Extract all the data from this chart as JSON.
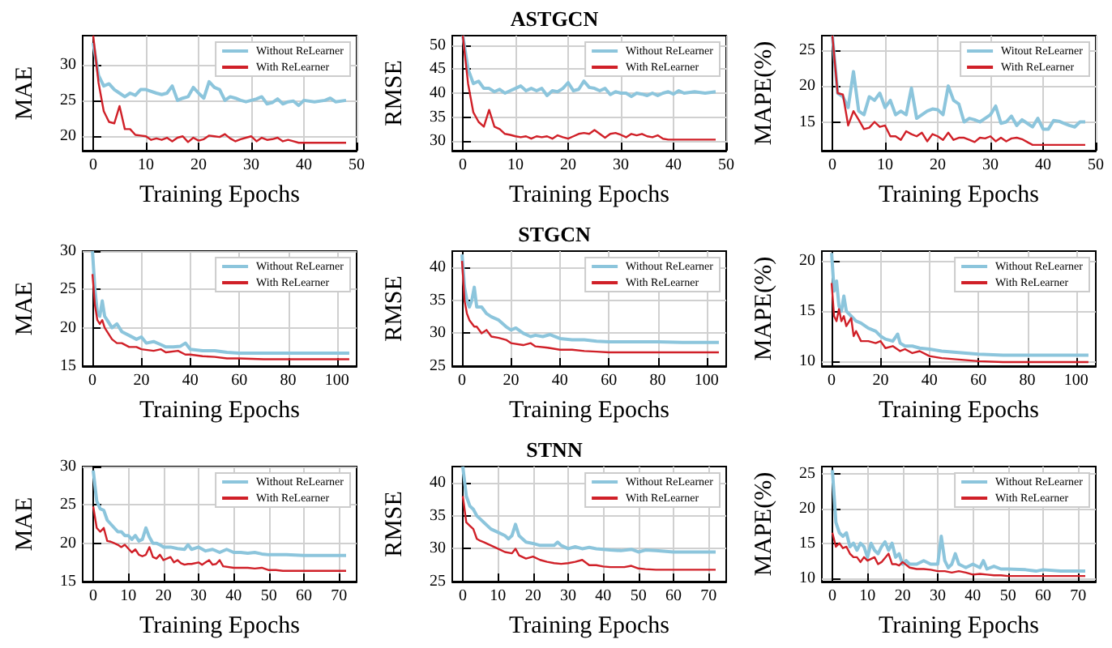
{
  "chart_data": [
    {
      "type": "line",
      "xlabel": "Training Epochs",
      "ylabel": "MAE",
      "xlim": [
        -2,
        50
      ],
      "xticks": [
        0,
        10,
        20,
        30,
        40,
        50
      ],
      "ylim": [
        18,
        34
      ],
      "yticks": [
        20,
        25,
        30
      ],
      "grid": true,
      "legend": "top right",
      "series": [
        {
          "name": "Without ReLearner",
          "color": "#8cc5dc",
          "x": [
            0,
            1,
            2,
            3,
            4,
            5,
            6,
            7,
            8,
            9,
            10,
            12,
            13,
            14,
            15,
            16,
            17,
            18,
            19,
            20,
            21,
            22,
            23,
            24,
            25,
            26,
            27,
            28,
            29,
            30,
            31,
            32,
            33,
            34,
            35,
            36,
            37,
            38,
            39,
            40,
            42,
            44,
            45,
            46,
            48
          ],
          "values": [
            33,
            28.5,
            27,
            27.3,
            26.5,
            26,
            25.5,
            26,
            25.7,
            26.5,
            26.5,
            26,
            25.8,
            26,
            27,
            25,
            25.3,
            25.5,
            26.8,
            26,
            25.3,
            27.6,
            26.8,
            26.5,
            25,
            25.5,
            25.3,
            25,
            24.8,
            25,
            25.2,
            25.5,
            24.5,
            24.7,
            25.2,
            24.5,
            24.8,
            24.9,
            24.3,
            25,
            24.8,
            25,
            25.3,
            24.8,
            25
          ]
        },
        {
          "name": "With ReLearner",
          "color": "#d02028",
          "x": [
            0,
            1,
            2,
            3,
            4,
            5,
            6,
            7,
            8,
            9,
            10,
            11,
            12,
            13,
            14,
            15,
            16,
            17,
            18,
            19,
            20,
            21,
            22,
            23,
            24,
            25,
            26,
            27,
            28,
            29,
            30,
            31,
            32,
            33,
            34,
            35,
            36,
            37,
            38,
            39,
            40,
            48
          ],
          "values": [
            34,
            27.5,
            23.5,
            22,
            21.8,
            24.2,
            21,
            21,
            20.2,
            20.1,
            20,
            19.5,
            19.7,
            19.5,
            19.8,
            19.3,
            19.8,
            20,
            19.2,
            19.8,
            19.4,
            19.6,
            20.1,
            20,
            19.9,
            20.3,
            19.7,
            19.3,
            19.6,
            19.8,
            20,
            19.3,
            19.8,
            19.5,
            19.6,
            19.8,
            19.3,
            19.5,
            19.3,
            19.1,
            19.1,
            19.1
          ]
        }
      ]
    },
    {
      "type": "line",
      "title": "ASTGCN",
      "xlabel": "Training Epochs",
      "ylabel": "RMSE",
      "xlim": [
        -2,
        50
      ],
      "xticks": [
        0,
        10,
        20,
        30,
        40,
        50
      ],
      "ylim": [
        28,
        52
      ],
      "yticks": [
        30,
        35,
        40,
        45,
        50
      ],
      "grid": true,
      "legend": "top right",
      "series": [
        {
          "name": "Without ReLearner",
          "color": "#8cc5dc",
          "x": [
            0,
            1,
            2,
            3,
            4,
            5,
            6,
            7,
            8,
            9,
            10,
            11,
            12,
            13,
            14,
            15,
            16,
            17,
            18,
            19,
            20,
            21,
            22,
            23,
            24,
            25,
            26,
            27,
            28,
            29,
            30,
            31,
            32,
            33,
            34,
            35,
            36,
            37,
            38,
            39,
            40,
            41,
            42,
            44,
            46,
            48
          ],
          "values": [
            52,
            45,
            42,
            42.5,
            41,
            41,
            40.3,
            40.8,
            40,
            40.5,
            41,
            41.5,
            40.5,
            41,
            40.5,
            41,
            39.5,
            40.5,
            40.3,
            41,
            42.2,
            40.5,
            40.8,
            42.5,
            41.2,
            41,
            40.5,
            41,
            39.7,
            40.3,
            40,
            40,
            39.3,
            40,
            39.8,
            39.5,
            40,
            39.5,
            40,
            40.3,
            39.8,
            40.5,
            40,
            40.3,
            40,
            40.3
          ]
        },
        {
          "name": "With ReLearner",
          "color": "#d02028",
          "x": [
            0,
            1,
            2,
            3,
            4,
            5,
            6,
            7,
            8,
            9,
            10,
            11,
            12,
            13,
            14,
            15,
            16,
            17,
            18,
            19,
            20,
            21,
            22,
            23,
            24,
            25,
            26,
            27,
            28,
            29,
            30,
            31,
            32,
            33,
            34,
            35,
            36,
            37,
            38,
            39,
            40,
            48
          ],
          "values": [
            52,
            42,
            36,
            34,
            33,
            36.5,
            33,
            32.5,
            31.5,
            31.3,
            31,
            30.8,
            31,
            30.5,
            31,
            30.8,
            31,
            30.5,
            31.2,
            30.8,
            30.5,
            31,
            31.5,
            31.7,
            31.5,
            32.3,
            31.5,
            30.7,
            31.5,
            31.7,
            31.3,
            30.8,
            31.5,
            31.2,
            31.5,
            31,
            30.8,
            31.2,
            30.5,
            30.3,
            30.3,
            30.3
          ]
        }
      ]
    },
    {
      "type": "line",
      "xlabel": "Training Epochs",
      "ylabel": "MAPE(%)",
      "xlim": [
        -2,
        50
      ],
      "xticks": [
        0,
        10,
        20,
        30,
        40,
        50
      ],
      "ylim": [
        11,
        27
      ],
      "yticks": [
        15,
        20,
        25
      ],
      "grid": true,
      "legend": "top right",
      "series": [
        {
          "name": "Witout ReLearner",
          "color": "#8cc5dc",
          "x": [
            0,
            1,
            2,
            3,
            4,
            5,
            6,
            7,
            8,
            9,
            10,
            11,
            12,
            13,
            14,
            15,
            16,
            17,
            18,
            19,
            20,
            21,
            22,
            23,
            24,
            25,
            26,
            27,
            28,
            29,
            30,
            31,
            32,
            33,
            34,
            35,
            36,
            37,
            38,
            39,
            40,
            41,
            42,
            43,
            44,
            45,
            46,
            47,
            48
          ],
          "values": [
            27,
            19,
            18.5,
            17,
            22,
            16.5,
            16,
            18.5,
            18,
            19,
            17,
            18,
            16,
            16.5,
            16,
            19.7,
            15.5,
            16,
            16.5,
            16.8,
            16.7,
            16,
            20,
            18,
            17.5,
            15,
            15.5,
            15.3,
            15,
            15.5,
            16,
            17.2,
            14.8,
            15,
            15.8,
            14.5,
            15.3,
            14.8,
            14.3,
            15.5,
            14,
            14,
            15.2,
            15.1,
            14.8,
            14.5,
            14.3,
            15,
            15
          ]
        },
        {
          "name": "With ReLearner",
          "color": "#d02028",
          "x": [
            0,
            1,
            2,
            3,
            4,
            5,
            6,
            7,
            8,
            9,
            10,
            11,
            12,
            13,
            14,
            15,
            16,
            17,
            18,
            19,
            20,
            21,
            22,
            23,
            24,
            25,
            26,
            27,
            28,
            29,
            30,
            31,
            32,
            33,
            34,
            35,
            36,
            37,
            38,
            48
          ],
          "values": [
            27,
            19,
            18.8,
            14.5,
            16.5,
            15.3,
            14,
            14.2,
            15,
            14.3,
            14.5,
            13,
            13,
            12.5,
            13.7,
            13.3,
            13,
            13.5,
            12.3,
            13.3,
            13,
            12.5,
            13.5,
            12.5,
            12.8,
            12.8,
            12.5,
            12.2,
            12.8,
            12.7,
            13,
            12.3,
            12.8,
            12.3,
            12.7,
            12.8,
            12.6,
            12.2,
            11.8,
            11.8
          ]
        }
      ]
    },
    {
      "type": "line",
      "xlabel": "Training Epochs",
      "ylabel": "MAE",
      "xlim": [
        -4,
        108
      ],
      "xticks": [
        0,
        20,
        40,
        60,
        80,
        100
      ],
      "ylim": [
        15,
        30
      ],
      "yticks": [
        15,
        20,
        25,
        30
      ],
      "grid": true,
      "legend": "top right",
      "series": [
        {
          "name": "Without ReLearner",
          "color": "#8cc5dc",
          "x": [
            0,
            1,
            2,
            3,
            4,
            5,
            6,
            8,
            10,
            12,
            15,
            18,
            20,
            22,
            25,
            28,
            30,
            33,
            36,
            38,
            40,
            45,
            50,
            55,
            60,
            70,
            80,
            90,
            105
          ],
          "values": [
            30,
            25,
            22,
            21.5,
            23.5,
            21.5,
            21,
            20,
            20.5,
            19.5,
            19,
            18.5,
            18.8,
            18,
            18.2,
            17.8,
            17.5,
            17.5,
            17.6,
            18,
            17.2,
            17,
            17,
            16.8,
            16.7,
            16.7,
            16.7,
            16.7,
            16.7
          ]
        },
        {
          "name": "With ReLearner",
          "color": "#d02028",
          "x": [
            0,
            1,
            2,
            3,
            4,
            5,
            6,
            8,
            10,
            12,
            15,
            18,
            20,
            25,
            28,
            30,
            35,
            38,
            40,
            45,
            50,
            55,
            60,
            70,
            80,
            105
          ],
          "values": [
            27,
            23,
            21,
            20.5,
            21,
            20,
            19.5,
            18.5,
            18,
            18,
            17.5,
            17.5,
            17.2,
            17,
            17.2,
            16.8,
            17,
            16.5,
            16.5,
            16.3,
            16.2,
            16,
            16,
            15.9,
            15.9,
            15.9
          ]
        }
      ]
    },
    {
      "type": "line",
      "title": "STGCN",
      "xlabel": "Training Epochs",
      "ylabel": "RMSE",
      "xlim": [
        -4,
        108
      ],
      "xticks": [
        0,
        20,
        40,
        60,
        80,
        100
      ],
      "ylim": [
        25,
        42.5
      ],
      "yticks": [
        25,
        30,
        35,
        40
      ],
      "grid": true,
      "legend": "top right",
      "series": [
        {
          "name": "Without ReLearner",
          "color": "#8cc5dc",
          "x": [
            0,
            1,
            2,
            3,
            4,
            5,
            6,
            8,
            10,
            12,
            15,
            18,
            20,
            22,
            25,
            28,
            30,
            33,
            36,
            40,
            45,
            50,
            55,
            60,
            70,
            80,
            90,
            105
          ],
          "values": [
            42,
            37,
            35,
            34,
            35,
            37,
            34,
            34,
            33,
            32.5,
            32,
            31,
            30.5,
            30.8,
            30,
            29.5,
            29.7,
            29.5,
            29.8,
            29.2,
            29,
            29,
            28.8,
            28.7,
            28.7,
            28.7,
            28.6,
            28.6
          ]
        },
        {
          "name": "With ReLearner",
          "color": "#d02028",
          "x": [
            0,
            1,
            2,
            3,
            4,
            5,
            6,
            8,
            10,
            12,
            15,
            18,
            20,
            25,
            28,
            30,
            35,
            40,
            45,
            50,
            55,
            60,
            70,
            105
          ],
          "values": [
            41,
            35,
            33,
            32,
            31.5,
            31,
            31,
            30,
            30.5,
            29.5,
            29.3,
            29,
            28.5,
            28.2,
            28.5,
            28,
            27.8,
            27.5,
            27.5,
            27.3,
            27.2,
            27.1,
            27.1,
            27.1
          ]
        }
      ]
    },
    {
      "type": "line",
      "xlabel": "Training Epochs",
      "ylabel": "MAPE(%)",
      "xlim": [
        -4,
        108
      ],
      "xticks": [
        0,
        20,
        40,
        60,
        80,
        100
      ],
      "ylim": [
        9.5,
        21
      ],
      "yticks": [
        10,
        15,
        20
      ],
      "grid": true,
      "legend": "top right",
      "series": [
        {
          "name": "Without ReLearner",
          "color": "#8cc5dc",
          "x": [
            0,
            1,
            2,
            3,
            4,
            5,
            6,
            8,
            10,
            12,
            15,
            18,
            20,
            22,
            25,
            27,
            28,
            30,
            33,
            36,
            40,
            45,
            50,
            55,
            60,
            70,
            80,
            105
          ],
          "values": [
            20.8,
            17,
            18,
            15.5,
            15,
            16.5,
            15,
            14.5,
            14,
            13.8,
            13.3,
            13,
            12.5,
            12.2,
            12,
            12.7,
            11.8,
            11.5,
            11.5,
            11.3,
            11.2,
            11,
            10.9,
            10.8,
            10.7,
            10.6,
            10.6,
            10.6
          ]
        },
        {
          "name": "With ReLearner",
          "color": "#d02028",
          "x": [
            0,
            1,
            2,
            3,
            4,
            5,
            6,
            8,
            9,
            10,
            12,
            15,
            18,
            20,
            22,
            25,
            28,
            30,
            33,
            36,
            40,
            45,
            50,
            55,
            60,
            70,
            80,
            105
          ],
          "values": [
            17.8,
            14.5,
            14,
            15.2,
            14,
            14.5,
            13.5,
            14.3,
            12.5,
            13,
            12,
            12,
            11.8,
            12,
            11.3,
            11.5,
            11,
            11.2,
            10.8,
            11,
            10.5,
            10.3,
            10.2,
            10.1,
            10,
            9.9,
            9.9,
            9.9
          ]
        }
      ]
    },
    {
      "type": "line",
      "xlabel": "Training Epochs",
      "ylabel": "MAE",
      "xlim": [
        -3,
        75
      ],
      "xticks": [
        0,
        10,
        20,
        30,
        40,
        50,
        60,
        70
      ],
      "ylim": [
        15,
        30
      ],
      "yticks": [
        15,
        20,
        25,
        30
      ],
      "grid": true,
      "legend": "top right",
      "series": [
        {
          "name": "Without ReLearner",
          "color": "#8cc5dc",
          "x": [
            0,
            1,
            2,
            3,
            4,
            5,
            6,
            7,
            8,
            9,
            10,
            11,
            12,
            13,
            14,
            15,
            16,
            17,
            18,
            19,
            20,
            22,
            24,
            26,
            27,
            28,
            30,
            32,
            34,
            36,
            38,
            40,
            42,
            44,
            46,
            48,
            50,
            55,
            60,
            65,
            72
          ],
          "values": [
            29.5,
            25.5,
            24.5,
            24.3,
            23,
            22.5,
            22,
            21.5,
            21.5,
            21,
            21,
            20.5,
            21,
            20.3,
            20.5,
            22,
            20.8,
            20,
            20,
            19.8,
            19.5,
            19.5,
            19.3,
            19.2,
            19.8,
            19.2,
            19.5,
            19,
            19.2,
            18.8,
            19.2,
            18.8,
            18.8,
            18.7,
            18.8,
            18.6,
            18.5,
            18.5,
            18.4,
            18.4,
            18.4
          ]
        },
        {
          "name": "With ReLearner",
          "color": "#d02028",
          "x": [
            0,
            1,
            2,
            3,
            4,
            5,
            6,
            7,
            8,
            9,
            10,
            11,
            12,
            13,
            14,
            15,
            16,
            17,
            18,
            19,
            20,
            21,
            22,
            23,
            24,
            25,
            26,
            27,
            28,
            30,
            31,
            32,
            33,
            34,
            35,
            36,
            37,
            40,
            42,
            44,
            46,
            48,
            50,
            52,
            54,
            60,
            72
          ],
          "values": [
            24.8,
            22,
            21.5,
            22,
            20.3,
            20.2,
            20,
            19.8,
            19.5,
            19.8,
            19.3,
            18.8,
            19.2,
            18.5,
            18.3,
            18.5,
            19.5,
            18.2,
            18,
            18.5,
            17.8,
            18,
            18.2,
            17.5,
            17.8,
            17.4,
            17.2,
            17.3,
            17.3,
            17.5,
            17.2,
            17.5,
            17.8,
            17.2,
            17.3,
            17.8,
            17,
            16.8,
            16.8,
            16.8,
            16.7,
            16.8,
            16.5,
            16.5,
            16.4,
            16.4,
            16.4
          ]
        }
      ]
    },
    {
      "type": "line",
      "title": "STNN",
      "xlabel": "Training Epochs",
      "ylabel": "RMSE",
      "xlim": [
        -3,
        75
      ],
      "xticks": [
        0,
        10,
        20,
        30,
        40,
        50,
        60,
        70
      ],
      "ylim": [
        25,
        42.5
      ],
      "yticks": [
        25,
        30,
        35,
        40
      ],
      "grid": true,
      "legend": "top right",
      "series": [
        {
          "name": "Without ReLearner",
          "color": "#8cc5dc",
          "x": [
            0,
            1,
            2,
            3,
            4,
            5,
            6,
            8,
            10,
            12,
            13,
            14,
            15,
            16,
            17,
            18,
            20,
            22,
            24,
            26,
            27,
            28,
            30,
            32,
            34,
            36,
            38,
            40,
            42,
            45,
            48,
            50,
            52,
            55,
            60,
            65,
            72
          ],
          "values": [
            42.5,
            38,
            36.5,
            36,
            35,
            34.5,
            34,
            33,
            32.5,
            32,
            31.5,
            32,
            33.7,
            32,
            31.5,
            31,
            30.8,
            30.5,
            30.5,
            30.5,
            31,
            30.5,
            30,
            30.3,
            30,
            30.2,
            30,
            29.9,
            29.8,
            29.7,
            29.9,
            29.5,
            29.8,
            29.7,
            29.5,
            29.5,
            29.5
          ]
        },
        {
          "name": "With ReLearner",
          "color": "#d02028",
          "x": [
            0,
            1,
            2,
            3,
            4,
            5,
            6,
            8,
            10,
            12,
            14,
            15,
            16,
            18,
            20,
            22,
            24,
            26,
            28,
            30,
            32,
            34,
            36,
            38,
            40,
            42,
            44,
            46,
            48,
            50,
            52,
            55,
            60,
            72
          ],
          "values": [
            38,
            34,
            33.5,
            33,
            31.5,
            31.2,
            31,
            30.5,
            30,
            29.5,
            29.3,
            30,
            29,
            28.5,
            28.8,
            28.3,
            28,
            27.8,
            27.7,
            27.8,
            28,
            28.3,
            27.5,
            27.5,
            27.3,
            27.2,
            27.2,
            27.2,
            27.4,
            27,
            26.9,
            26.8,
            26.8,
            26.8
          ]
        }
      ]
    },
    {
      "type": "line",
      "xlabel": "Training Epochs",
      "ylabel": "MAPE(%)",
      "xlim": [
        -3,
        75
      ],
      "xticks": [
        0,
        10,
        20,
        30,
        40,
        50,
        60,
        70
      ],
      "ylim": [
        9.5,
        26
      ],
      "yticks": [
        10,
        15,
        20,
        25
      ],
      "grid": true,
      "legend": "top right",
      "series": [
        {
          "name": "Without ReLearner",
          "color": "#8cc5dc",
          "x": [
            0,
            1,
            2,
            3,
            4,
            5,
            6,
            7,
            8,
            9,
            10,
            11,
            12,
            13,
            14,
            15,
            16,
            17,
            18,
            19,
            20,
            21,
            22,
            24,
            26,
            28,
            30,
            31,
            32,
            33,
            34,
            35,
            36,
            38,
            40,
            42,
            43,
            44,
            46,
            48,
            50,
            55,
            58,
            60,
            65,
            70,
            72
          ],
          "values": [
            25.5,
            18,
            16.5,
            16,
            16.5,
            14.5,
            15,
            14,
            15,
            14.5,
            13,
            15,
            14,
            13.5,
            14.5,
            15.2,
            14,
            15,
            13,
            13.5,
            12,
            12.5,
            12,
            12,
            12.5,
            12,
            12,
            16,
            12.5,
            11.5,
            12,
            13.5,
            12,
            11.5,
            12,
            11.5,
            12.5,
            11.3,
            11.7,
            11.3,
            11.3,
            11.2,
            11,
            11.2,
            11,
            11,
            11
          ]
        },
        {
          "name": "With ReLearner",
          "color": "#d02028",
          "x": [
            0,
            1,
            2,
            3,
            4,
            5,
            6,
            7,
            8,
            9,
            10,
            12,
            13,
            14,
            16,
            17,
            18,
            19,
            20,
            22,
            24,
            26,
            28,
            30,
            32,
            34,
            36,
            38,
            40,
            42,
            44,
            46,
            48,
            50,
            55,
            60,
            72
          ],
          "values": [
            16.5,
            14.5,
            15,
            14.3,
            14.5,
            13.5,
            13,
            13,
            12.3,
            13,
            12.5,
            13,
            12,
            12.3,
            13.5,
            12,
            12,
            11.8,
            12.3,
            11.5,
            11.3,
            11.3,
            11.2,
            11,
            11,
            10.8,
            11,
            10.8,
            10.5,
            10.6,
            10.5,
            10.4,
            10.4,
            10.3,
            10.3,
            10.3,
            10.3
          ]
        }
      ]
    }
  ]
}
